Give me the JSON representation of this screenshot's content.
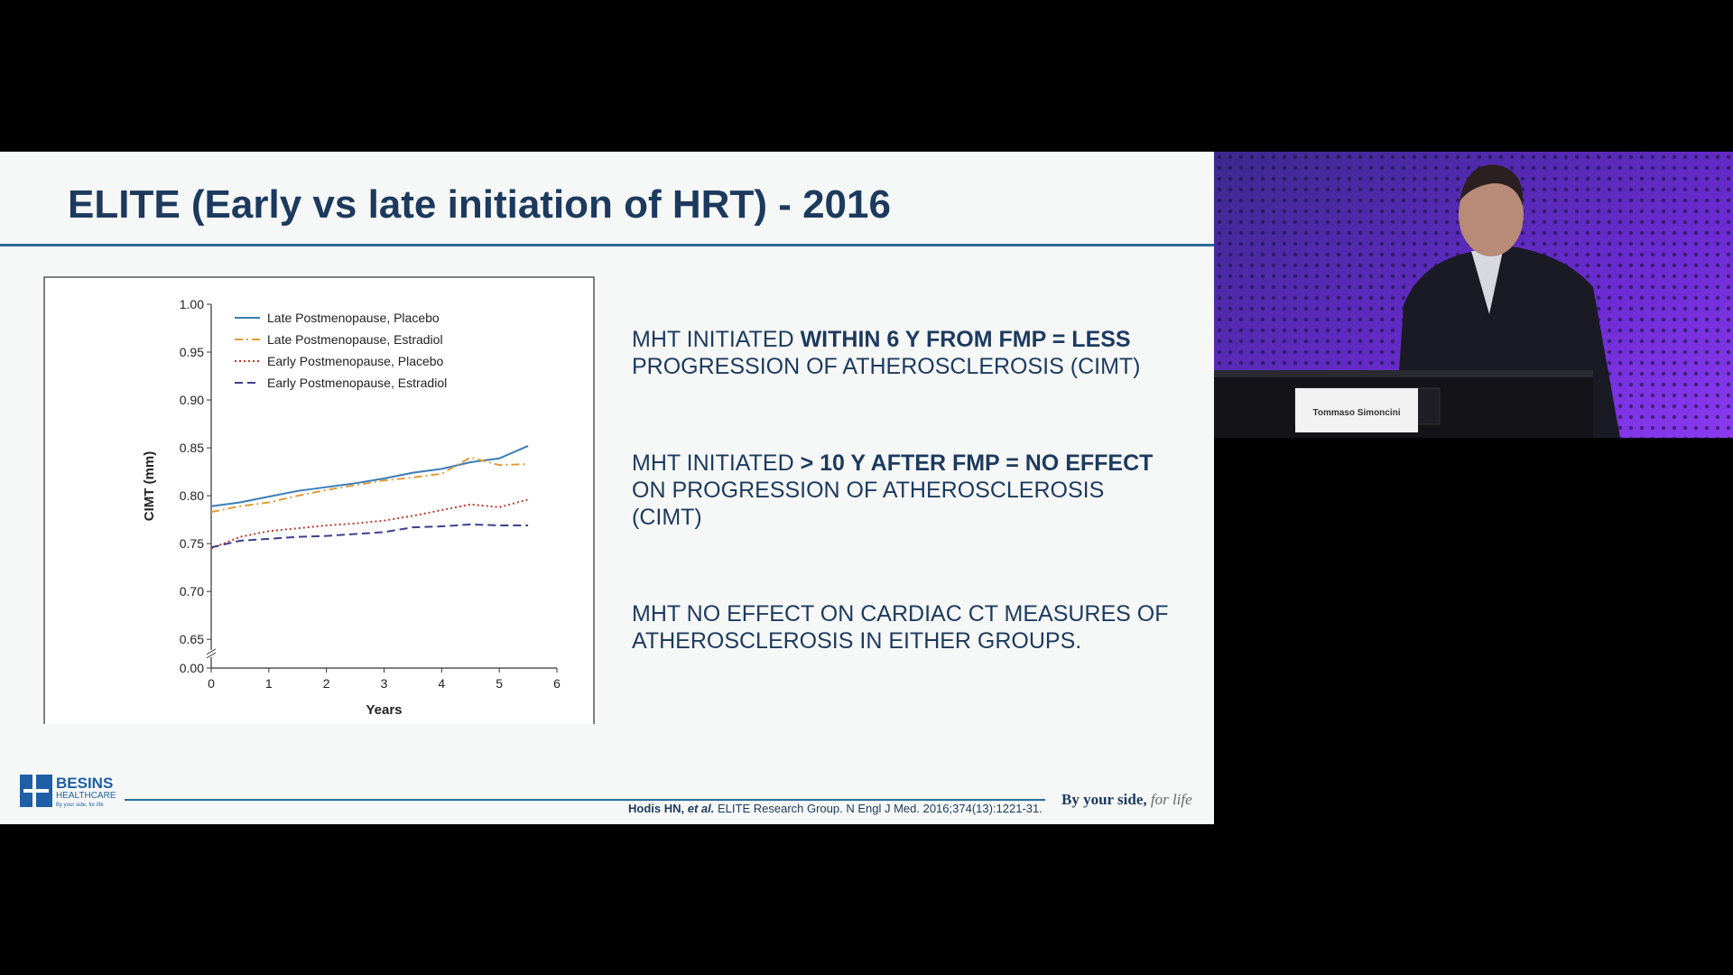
{
  "slide": {
    "title": "ELITE (Early vs late initiation of HRT) - 2016",
    "bullets": [
      {
        "parts": [
          {
            "text": "MHT INITIATED ",
            "bold": false
          },
          {
            "text": "WITHIN 6 Y FROM FMP = LESS",
            "bold": true
          },
          {
            "text": " PROGRESSION OF ATHEROSCLEROSIS (CIMT)",
            "bold": false
          }
        ]
      },
      {
        "parts": [
          {
            "text": "MHT INITIATED ",
            "bold": false
          },
          {
            "text": "> 10 Y AFTER FMP = NO EFFECT",
            "bold": true
          },
          {
            "text": " ON PROGRESSION OF ATHEROSCLEROSIS (CIMT)",
            "bold": false
          }
        ]
      },
      {
        "parts": [
          {
            "text": "MHT NO EFFECT ON CARDIAC CT MEASURES OF ATHEROSCLEROSIS IN EITHER GROUPS.",
            "bold": false
          }
        ]
      }
    ],
    "logo": {
      "name": "BESINS",
      "sub": "HEALTHCARE",
      "tagline": "By your side, for life"
    },
    "citation": {
      "authors": "Hodis HN,",
      "etal": "et al.",
      "rest": "ELITE Research Group. N Engl J Med. 2016;374(13):1221-31."
    },
    "slogan": {
      "main": "By your side,",
      "script": "for life"
    }
  },
  "speaker": {
    "nameplate": "Tommaso Simoncini"
  },
  "chart_data": {
    "type": "line",
    "xlabel": "Years",
    "ylabel": "CIMT (mm)",
    "x": [
      0,
      0.5,
      1,
      1.5,
      2,
      2.5,
      3,
      3.5,
      4,
      4.5,
      5,
      5.5
    ],
    "xlim": [
      0,
      6
    ],
    "xticks": [
      0,
      1,
      2,
      3,
      4,
      5,
      6
    ],
    "ylim": [
      0.62,
      1.0
    ],
    "yticks": [
      {
        "value": 0,
        "label": "0.00"
      },
      {
        "value": 0.65,
        "label": "0.65"
      },
      {
        "value": 0.7,
        "label": "0.70"
      },
      {
        "value": 0.75,
        "label": "0.75"
      },
      {
        "value": 0.8,
        "label": "0.80"
      },
      {
        "value": 0.85,
        "label": "0.85"
      },
      {
        "value": 0.9,
        "label": "0.90"
      },
      {
        "value": 0.95,
        "label": "0.95"
      },
      {
        "value": 1,
        "label": "1.00"
      }
    ],
    "axis_break": true,
    "series": [
      {
        "name": "Late Postmenopause, Placebo",
        "color": "#3a7db8",
        "dash": "solid",
        "values": [
          0.789,
          0.793,
          0.799,
          0.805,
          0.809,
          0.813,
          0.818,
          0.824,
          0.828,
          0.835,
          0.839,
          0.852
        ]
      },
      {
        "name": "Late Postmenopause, Estradiol",
        "color": "#e39b3a",
        "dash": "dashdot",
        "values": [
          0.783,
          0.789,
          0.793,
          0.8,
          0.806,
          0.811,
          0.816,
          0.819,
          0.823,
          0.84,
          0.832,
          0.833
        ]
      },
      {
        "name": "Early Postmenopause, Placebo",
        "color": "#c0392b",
        "dash": "dotted",
        "values": [
          0.745,
          0.757,
          0.763,
          0.766,
          0.769,
          0.771,
          0.774,
          0.779,
          0.785,
          0.791,
          0.788,
          0.796
        ]
      },
      {
        "name": "Early Postmenopause, Estradiol",
        "color": "#3b3f8f",
        "dash": "dashed",
        "values": [
          0.746,
          0.753,
          0.755,
          0.757,
          0.758,
          0.76,
          0.762,
          0.767,
          0.768,
          0.77,
          0.769,
          0.769
        ]
      }
    ]
  }
}
